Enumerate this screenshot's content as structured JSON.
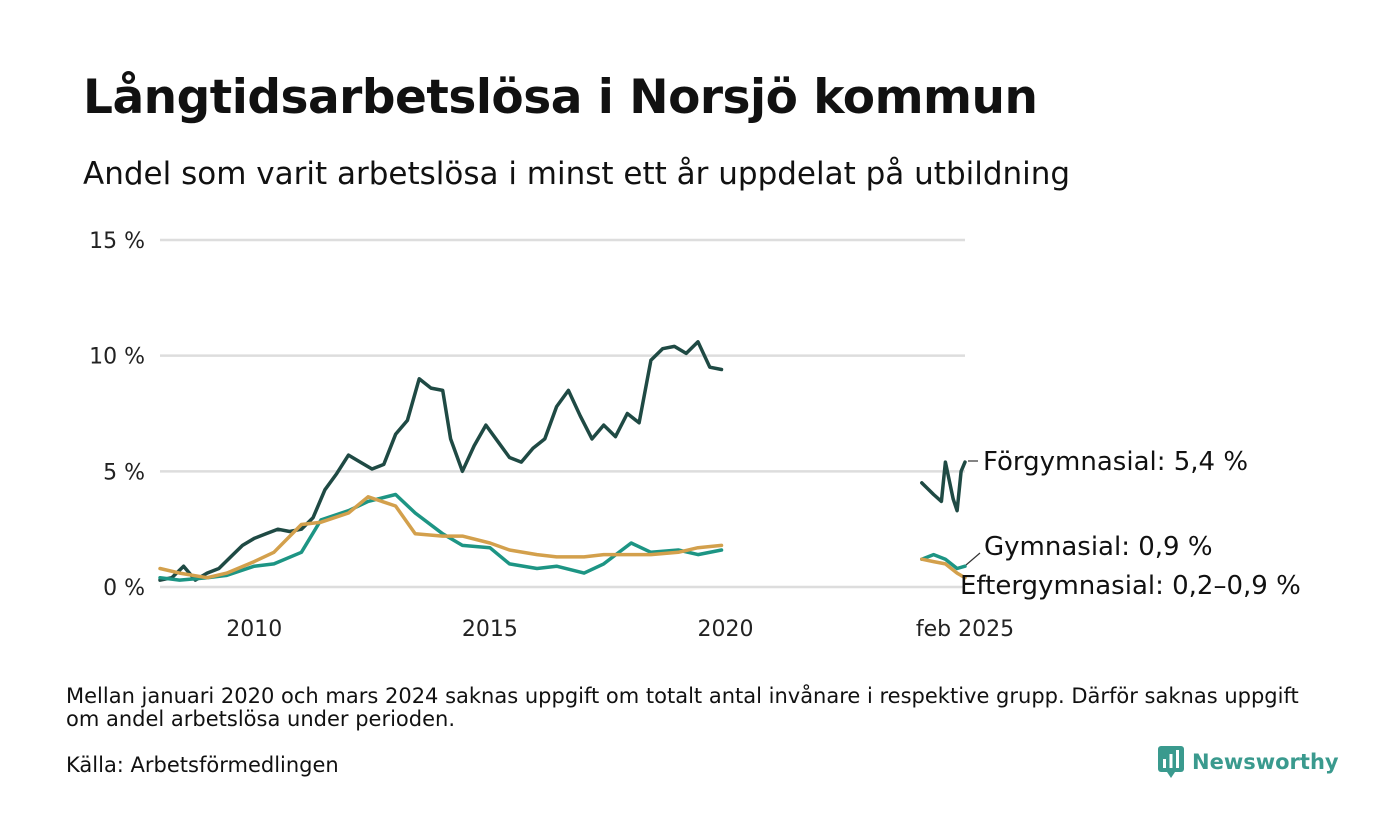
{
  "header": {
    "title": "Långtidsarbetslösa i Norsjö kommun",
    "subtitle": "Andel som varit arbetslösa i minst ett år uppdelat på utbildning"
  },
  "footer": {
    "note": "Mellan januari 2020 och mars 2024 saknas uppgift om totalt antal invånare i respektive grupp. Därför saknas uppgift om andel arbetslösa under perioden.",
    "source": "Källa: Arbetsförmedlingen",
    "brand": "Newsworthy"
  },
  "colors": {
    "forgymnasial": "#1f4a44",
    "gymnasial": "#1d9584",
    "eftergymnasial": "#d3a04c",
    "grid": "#dddddd",
    "brand": "#3a9a8e"
  },
  "chart_data": {
    "type": "line",
    "title": "Långtidsarbetslösa i Norsjö kommun",
    "subtitle": "Andel som varit arbetslösa i minst ett år uppdelat på utbildning",
    "xlabel": "",
    "ylabel": "",
    "ylim": [
      0,
      15
    ],
    "yticks": [
      0,
      5,
      10,
      15
    ],
    "ytick_labels": [
      "0 %",
      "5 %",
      "10 %",
      "15 %"
    ],
    "xlim": [
      "2008-01",
      "2025-02"
    ],
    "xticks": [
      "2010-01",
      "2015-01",
      "2020-01",
      "2025-02"
    ],
    "xtick_labels": [
      "2010",
      "2015",
      "2020",
      "feb 2025"
    ],
    "grid": true,
    "legend": "direct labels at right end of lines",
    "series": [
      {
        "key": "forgymnasial",
        "label": "Förgymnasial: 5,4 %",
        "color": "#1f4a44",
        "segments": [
          [
            [
              "2008-01",
              0.3
            ],
            [
              "2008-04",
              0.4
            ],
            [
              "2008-07",
              0.9
            ],
            [
              "2008-10",
              0.3
            ],
            [
              "2009-01",
              0.6
            ],
            [
              "2009-04",
              0.8
            ],
            [
              "2009-07",
              1.3
            ],
            [
              "2009-10",
              1.8
            ],
            [
              "2010-01",
              2.1
            ],
            [
              "2010-04",
              2.3
            ],
            [
              "2010-07",
              2.5
            ],
            [
              "2010-10",
              2.4
            ],
            [
              "2011-01",
              2.5
            ],
            [
              "2011-04",
              3.0
            ],
            [
              "2011-07",
              4.2
            ],
            [
              "2011-10",
              4.9
            ],
            [
              "2012-01",
              5.7
            ],
            [
              "2012-04",
              5.4
            ],
            [
              "2012-07",
              5.1
            ],
            [
              "2012-10",
              5.3
            ],
            [
              "2013-01",
              6.6
            ],
            [
              "2013-04",
              7.2
            ],
            [
              "2013-07",
              9.0
            ],
            [
              "2013-10",
              8.6
            ],
            [
              "2014-01",
              8.5
            ],
            [
              "2014-03",
              6.4
            ],
            [
              "2014-06",
              5.0
            ],
            [
              "2014-09",
              6.1
            ],
            [
              "2014-12",
              7.0
            ],
            [
              "2015-03",
              6.3
            ],
            [
              "2015-06",
              5.6
            ],
            [
              "2015-09",
              5.4
            ],
            [
              "2015-12",
              6.0
            ],
            [
              "2016-03",
              6.4
            ],
            [
              "2016-06",
              7.8
            ],
            [
              "2016-09",
              8.5
            ],
            [
              "2016-12",
              7.4
            ],
            [
              "2017-03",
              6.4
            ],
            [
              "2017-06",
              7.0
            ],
            [
              "2017-09",
              6.5
            ],
            [
              "2017-12",
              7.5
            ],
            [
              "2018-03",
              7.1
            ],
            [
              "2018-06",
              9.8
            ],
            [
              "2018-09",
              10.3
            ],
            [
              "2018-12",
              10.4
            ],
            [
              "2019-03",
              10.1
            ],
            [
              "2019-06",
              10.6
            ],
            [
              "2019-09",
              9.5
            ],
            [
              "2019-12",
              9.4
            ],
            [
              "2019-12",
              9.4
            ]
          ],
          [
            [
              "2024-03",
              4.5
            ],
            [
              "2024-06",
              4.0
            ],
            [
              "2024-08",
              3.7
            ],
            [
              "2024-09",
              5.4
            ],
            [
              "2024-11",
              3.8
            ],
            [
              "2024-12",
              3.3
            ],
            [
              "2025-01",
              5.0
            ],
            [
              "2025-02",
              5.4
            ]
          ]
        ]
      },
      {
        "key": "gymnasial",
        "label": "Gymnasial: 0,9 %",
        "color": "#1d9584",
        "segments": [
          [
            [
              "2008-01",
              0.4
            ],
            [
              "2008-06",
              0.3
            ],
            [
              "2009-01",
              0.4
            ],
            [
              "2009-06",
              0.5
            ],
            [
              "2010-01",
              0.9
            ],
            [
              "2010-06",
              1.0
            ],
            [
              "2011-01",
              1.5
            ],
            [
              "2011-06",
              2.9
            ],
            [
              "2012-01",
              3.3
            ],
            [
              "2012-06",
              3.7
            ],
            [
              "2013-01",
              4.0
            ],
            [
              "2013-06",
              3.2
            ],
            [
              "2014-01",
              2.3
            ],
            [
              "2014-06",
              1.8
            ],
            [
              "2015-01",
              1.7
            ],
            [
              "2015-06",
              1.0
            ],
            [
              "2016-01",
              0.8
            ],
            [
              "2016-06",
              0.9
            ],
            [
              "2017-01",
              0.6
            ],
            [
              "2017-06",
              1.0
            ],
            [
              "2018-01",
              1.9
            ],
            [
              "2018-06",
              1.5
            ],
            [
              "2019-01",
              1.6
            ],
            [
              "2019-06",
              1.4
            ],
            [
              "2019-12",
              1.6
            ]
          ],
          [
            [
              "2024-03",
              1.2
            ],
            [
              "2024-06",
              1.4
            ],
            [
              "2024-09",
              1.2
            ],
            [
              "2024-12",
              0.8
            ],
            [
              "2025-02",
              0.9
            ]
          ]
        ]
      },
      {
        "key": "eftergymnasial",
        "label": "Eftergymnasial: 0,2–0,9 %",
        "color": "#d3a04c",
        "segments": [
          [
            [
              "2008-01",
              0.8
            ],
            [
              "2008-06",
              0.6
            ],
            [
              "2009-01",
              0.4
            ],
            [
              "2009-06",
              0.6
            ],
            [
              "2010-01",
              1.1
            ],
            [
              "2010-06",
              1.5
            ],
            [
              "2011-01",
              2.7
            ],
            [
              "2011-06",
              2.8
            ],
            [
              "2012-01",
              3.2
            ],
            [
              "2012-06",
              3.9
            ],
            [
              "2013-01",
              3.5
            ],
            [
              "2013-06",
              2.3
            ],
            [
              "2014-01",
              2.2
            ],
            [
              "2014-06",
              2.2
            ],
            [
              "2015-01",
              1.9
            ],
            [
              "2015-06",
              1.6
            ],
            [
              "2016-01",
              1.4
            ],
            [
              "2016-06",
              1.3
            ],
            [
              "2017-01",
              1.3
            ],
            [
              "2017-06",
              1.4
            ],
            [
              "2018-01",
              1.4
            ],
            [
              "2018-06",
              1.4
            ],
            [
              "2019-01",
              1.5
            ],
            [
              "2019-06",
              1.7
            ],
            [
              "2019-12",
              1.8
            ]
          ],
          [
            [
              "2024-03",
              1.2
            ],
            [
              "2024-06",
              1.1
            ],
            [
              "2024-09",
              1.0
            ],
            [
              "2024-12",
              0.6
            ],
            [
              "2025-02",
              0.4
            ]
          ]
        ]
      }
    ]
  }
}
